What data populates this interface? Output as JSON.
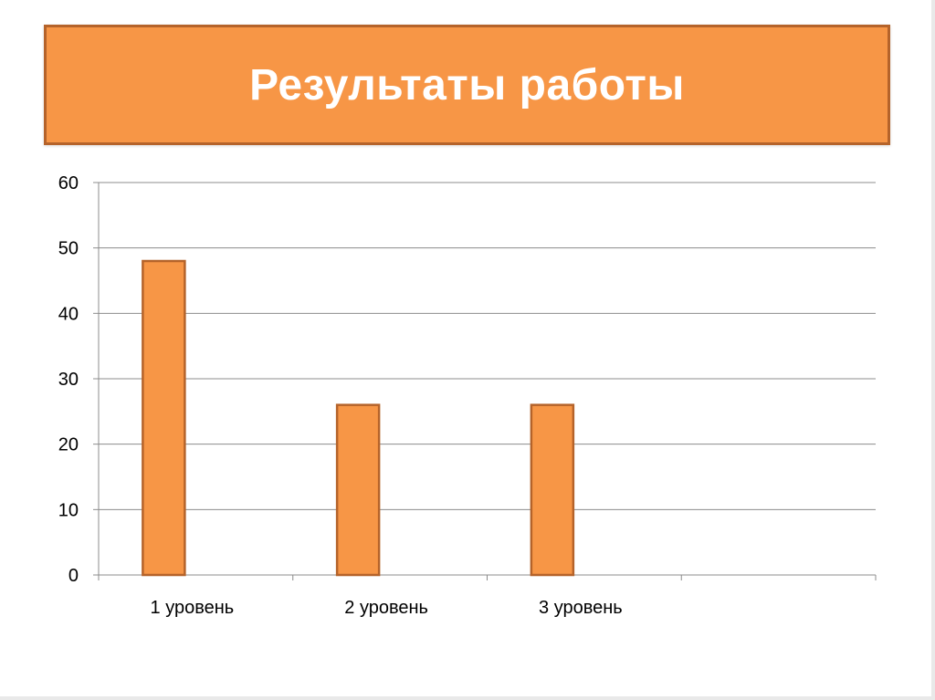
{
  "slide": {
    "title": "Результаты работы",
    "title_bg": "#f79646",
    "title_border": "#b5632a"
  },
  "chart_data": {
    "type": "bar",
    "categories": [
      "1 уровень",
      "2 уровень",
      "3 уровень",
      ""
    ],
    "series": [
      {
        "values": [
          48,
          26,
          26,
          null
        ],
        "color": "#f79646",
        "stroke": "#b5632a"
      }
    ],
    "ylim": [
      0,
      60
    ],
    "yticks": [
      0,
      10,
      20,
      30,
      40,
      50,
      60
    ],
    "xlabel": "",
    "ylabel": "",
    "grid": true,
    "legend": "none"
  }
}
